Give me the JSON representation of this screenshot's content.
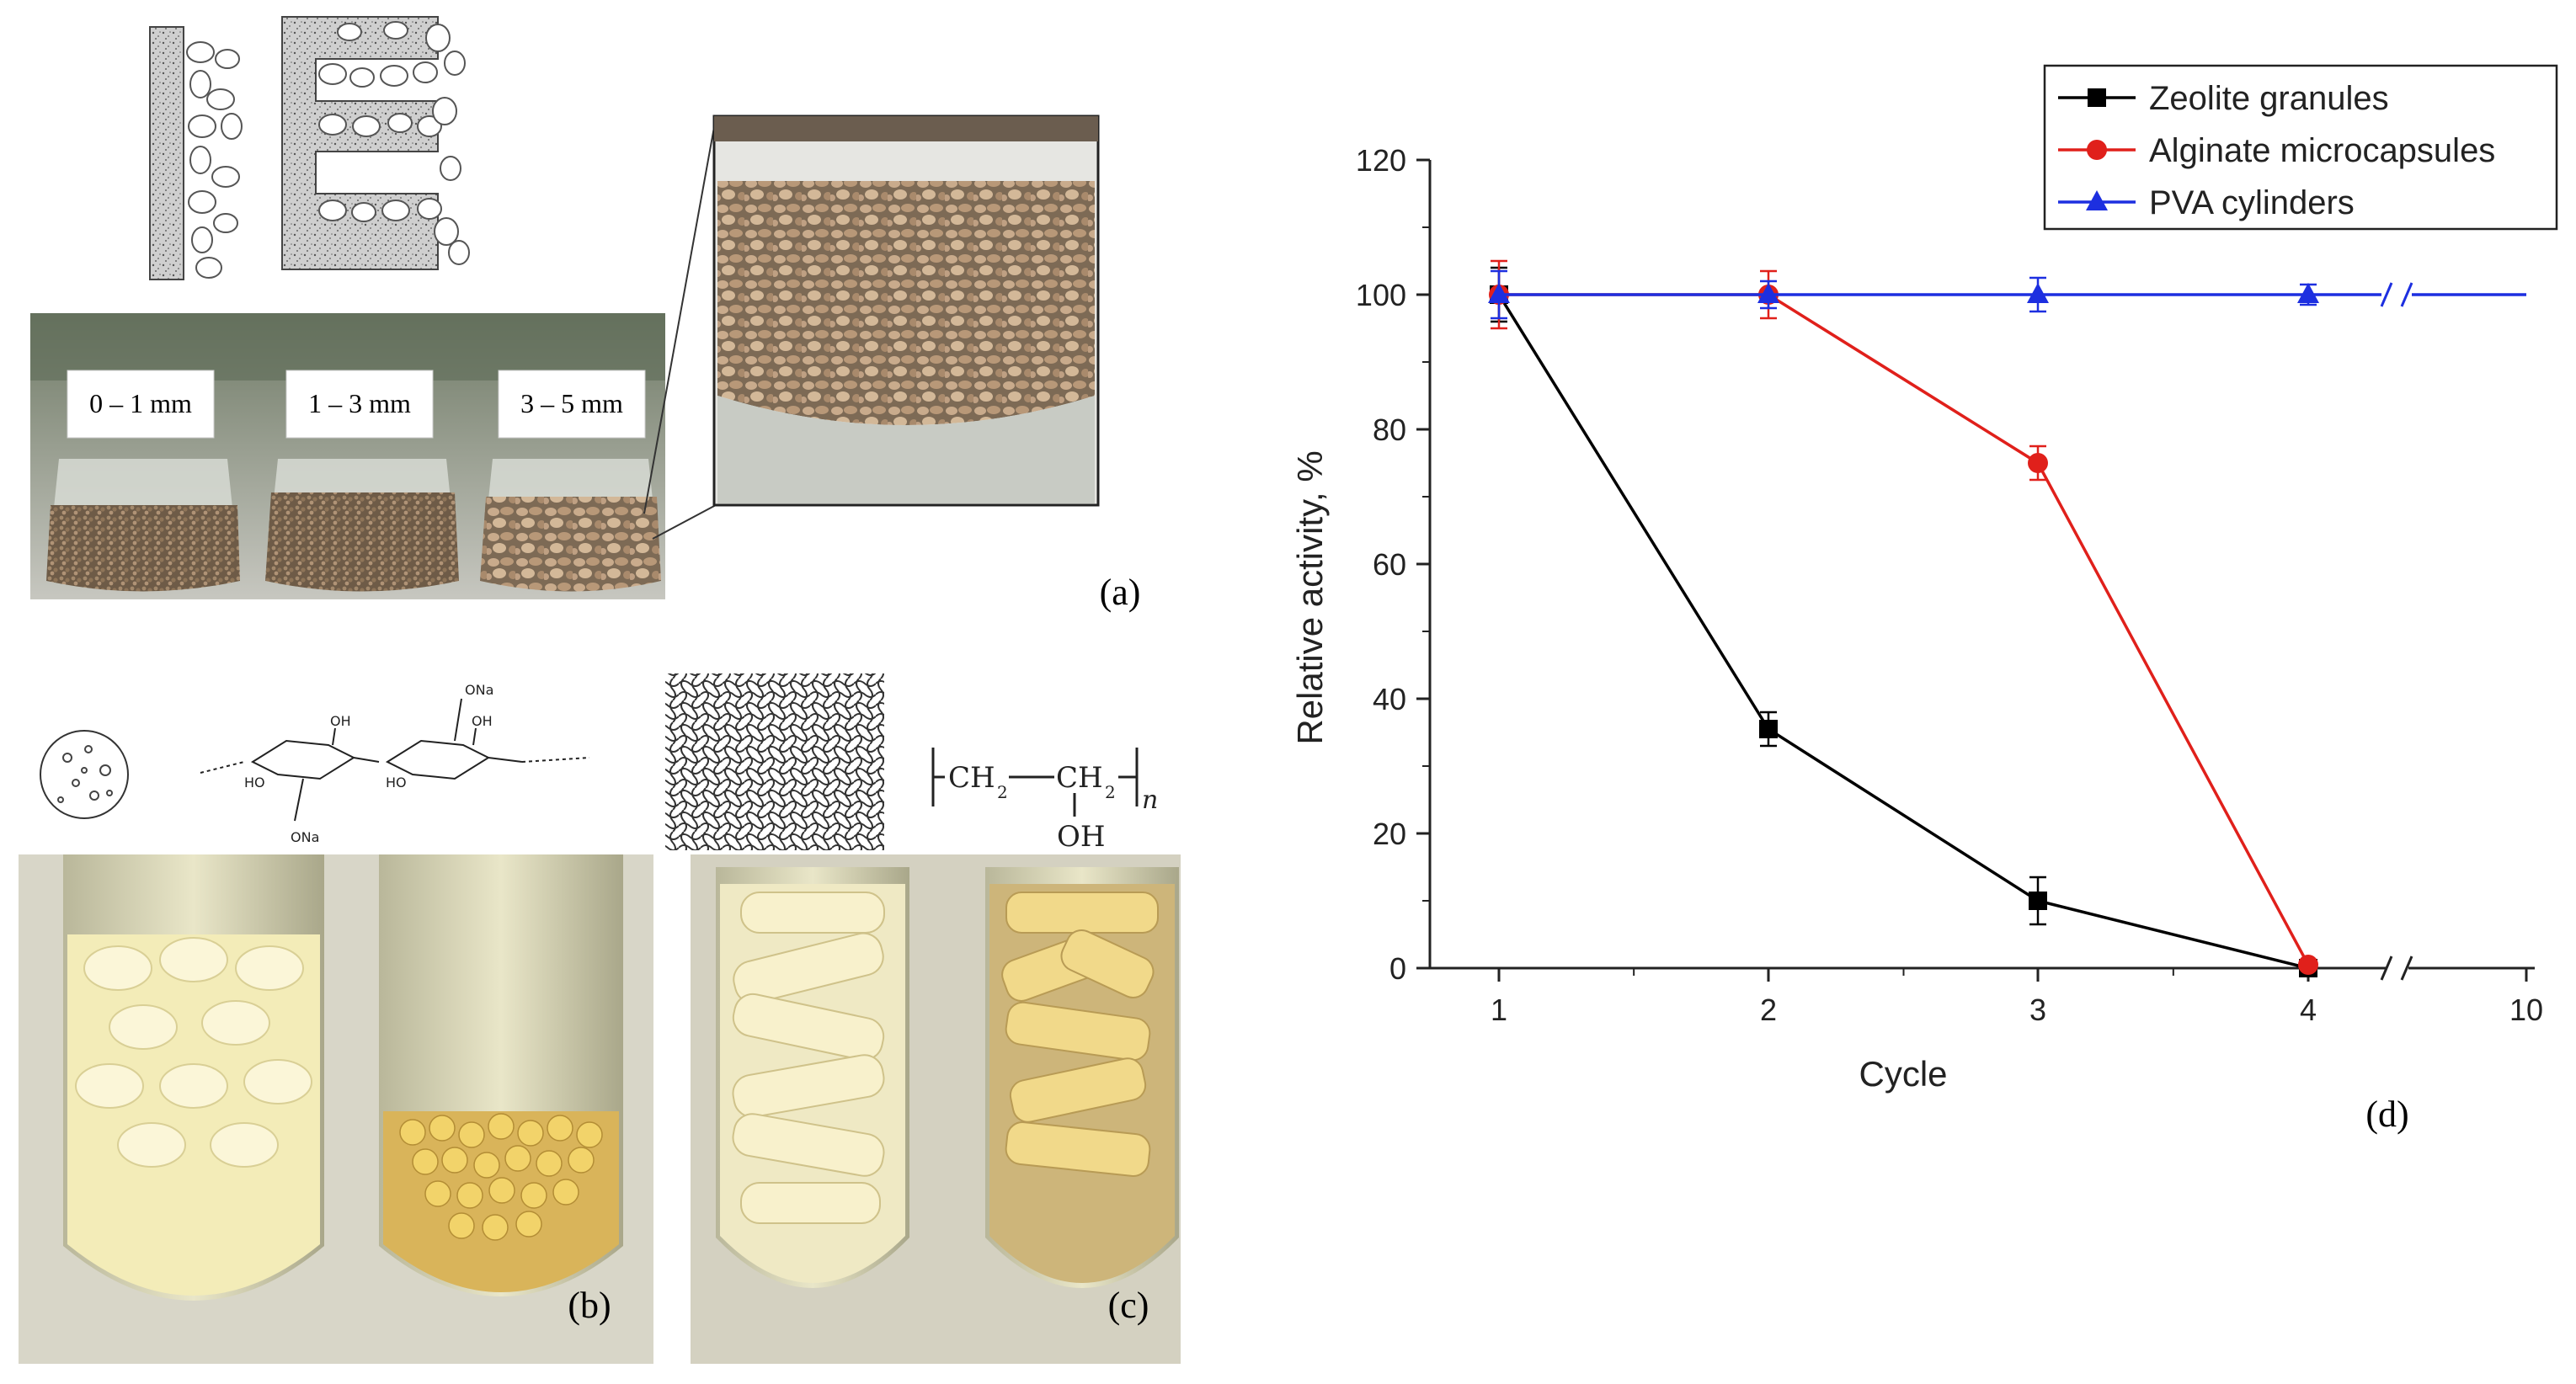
{
  "panel_labels": {
    "a": "(a)",
    "b": "(b)",
    "c": "(c)",
    "d": "(d)"
  },
  "size_labels": [
    "0 – 1 mm",
    "1 – 3 mm",
    "3 – 5 mm"
  ],
  "alginate_structure": {
    "group_top": "ONa",
    "group_bottom": "ONa",
    "oh_1": "OH",
    "oh_2": "OH",
    "ho_1": "HO",
    "ho_2": "HO"
  },
  "pva_structure": {
    "ch_1": "CH",
    "sub_1": "2",
    "ch_2": "CH",
    "sub_2": "2",
    "n": "n",
    "oh": "OH"
  },
  "colors": {
    "zeolite": "#000000",
    "alginate": "#e0201b",
    "pva": "#1d2fe0",
    "zeolite_bed": "#8a7560",
    "gel_beads": "#f1e6a0"
  },
  "chart_data": {
    "type": "line",
    "xlabel": "Cycle",
    "ylabel": "Relative activity, %",
    "x_ticks": [
      1,
      2,
      3,
      4,
      10
    ],
    "x_break_between": [
      4,
      10
    ],
    "ylim": [
      0,
      120
    ],
    "y_ticks": [
      0,
      20,
      40,
      60,
      80,
      100,
      120
    ],
    "legend_position": "top-right",
    "series": [
      {
        "name": "Zeolite granules",
        "marker": "square",
        "color": "#000000",
        "x": [
          1,
          2,
          3,
          4
        ],
        "y": [
          100,
          35.5,
          10,
          0
        ],
        "err": [
          4,
          2.5,
          3.5,
          0
        ]
      },
      {
        "name": "Alginate microcapsules",
        "marker": "circle",
        "color": "#e0201b",
        "x": [
          1,
          2,
          3,
          4
        ],
        "y": [
          100,
          100,
          75,
          0.5
        ],
        "err": [
          5,
          3.5,
          2.5,
          0
        ]
      },
      {
        "name": "PVA cylinders",
        "marker": "triangle",
        "color": "#1d2fe0",
        "x": [
          1,
          2,
          3,
          4,
          10
        ],
        "y": [
          100,
          100,
          100,
          100,
          100
        ],
        "err": [
          3.5,
          2,
          2.5,
          1.5,
          0
        ],
        "markers_until": 4
      }
    ]
  }
}
